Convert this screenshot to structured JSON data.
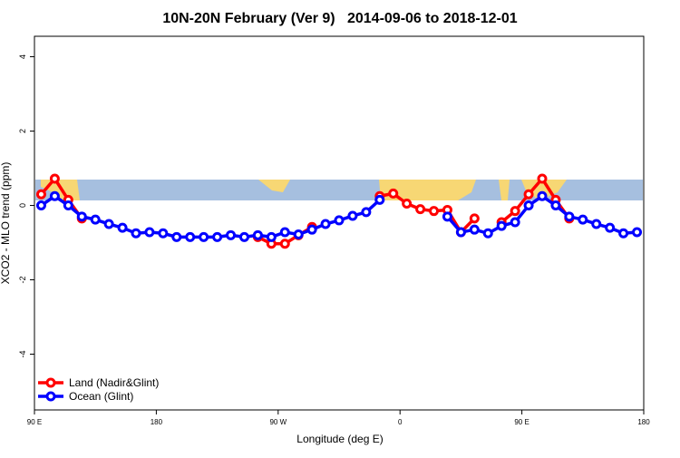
{
  "chart_data": {
    "type": "line",
    "title": "10N-20N February (Ver 9)   2014-09-06 to 2018-12-01",
    "x_label": "Longitude (deg E)",
    "y_label": "XCO2 - MLO trend (ppm)",
    "x": [
      95,
      105,
      115,
      125,
      135,
      145,
      155,
      165,
      175,
      185,
      195,
      205,
      215,
      225,
      235,
      245,
      255,
      265,
      275,
      285,
      295,
      305,
      315,
      325,
      335,
      345,
      355,
      365,
      375,
      385,
      395,
      405,
      415,
      425,
      435,
      445,
      455,
      465,
      475,
      485,
      495,
      505,
      515,
      525,
      535
    ],
    "series": [
      {
        "name": "Land (Nadir&Glint)",
        "color": "#ff0000",
        "values": [
          0.3,
          0.72,
          0.15,
          -0.35,
          null,
          null,
          null,
          null,
          null,
          null,
          null,
          null,
          null,
          null,
          null,
          null,
          -0.85,
          -1.03,
          -1.03,
          -0.8,
          -0.58,
          null,
          null,
          null,
          null,
          0.25,
          0.32,
          0.05,
          -0.1,
          -0.15,
          -0.12,
          -0.72,
          -0.35,
          null,
          -0.45,
          -0.15,
          0.3,
          0.72,
          0.15,
          -0.35,
          null,
          null,
          null,
          null,
          null
        ]
      },
      {
        "name": "Ocean (Glint)",
        "color": "#0000ff",
        "values": [
          0.0,
          0.25,
          0.0,
          -0.3,
          -0.38,
          -0.5,
          -0.6,
          -0.75,
          -0.72,
          -0.75,
          -0.85,
          -0.85,
          -0.85,
          -0.85,
          -0.8,
          -0.85,
          -0.8,
          -0.85,
          -0.72,
          -0.78,
          -0.65,
          -0.5,
          -0.4,
          -0.28,
          -0.18,
          0.15,
          null,
          null,
          null,
          null,
          -0.3,
          -0.72,
          -0.65,
          -0.75,
          -0.55,
          -0.45,
          0.0,
          0.25,
          0.0,
          -0.3,
          -0.38,
          -0.5,
          -0.6,
          -0.75,
          -0.72
        ]
      }
    ],
    "xlim": [
      90,
      540
    ],
    "xticks": [
      {
        "value": 90,
        "label": "90 E"
      },
      180,
      {
        "value": 270,
        "label": "90 W"
      },
      {
        "value": 360,
        "label": "0"
      },
      {
        "value": 450,
        "label": "90 E"
      },
      {
        "value": 540,
        "label": "180"
      }
    ],
    "ylim": [
      -5.5,
      4.55
    ],
    "yticks": [
      4,
      2,
      0,
      -2,
      -4
    ],
    "legend": "bottom-left"
  }
}
